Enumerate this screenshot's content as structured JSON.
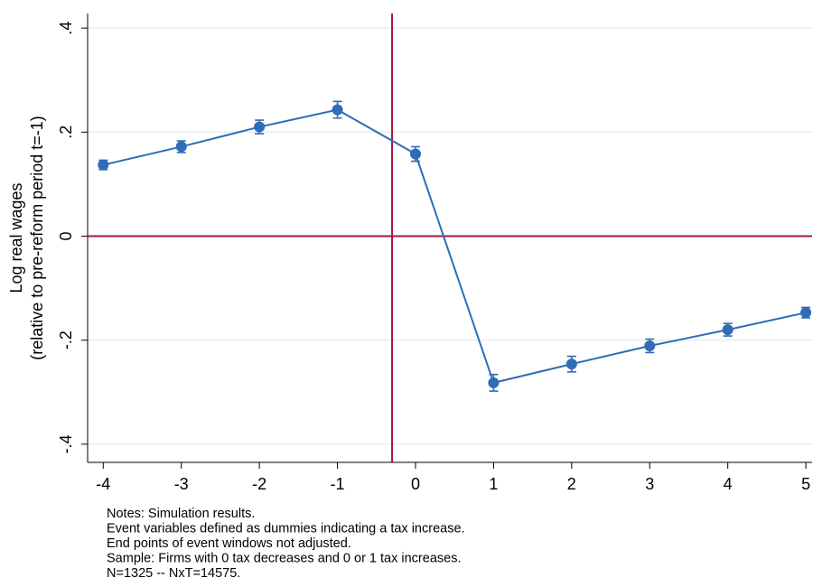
{
  "chart_data": {
    "type": "line",
    "ylabel": [
      "Log real wages",
      "(relative to pre-reform period t=-1)"
    ],
    "x": [
      -4,
      -3,
      -2,
      -1,
      0,
      1,
      2,
      3,
      4,
      5
    ],
    "series": [
      {
        "color": "#2f6cb8",
        "values": [
          0.137,
          0.172,
          0.21,
          0.243,
          0.158,
          -0.282,
          -0.246,
          -0.211,
          -0.18,
          -0.147
        ],
        "errors": [
          0.009,
          0.011,
          0.013,
          0.016,
          0.014,
          0.016,
          0.015,
          0.013,
          0.012,
          0.01
        ]
      }
    ],
    "xlim": [
      -4.2,
      5.08
    ],
    "xticks": [
      -4,
      -3,
      -2,
      -1,
      0,
      1,
      2,
      3,
      4,
      5
    ],
    "ylim": [
      -0.435,
      0.428
    ],
    "yticks": [
      {
        "value": -0.4,
        "label": "-.4"
      },
      {
        "value": -0.2,
        "label": "-.2"
      },
      0,
      {
        "value": 0.2,
        "label": ".2"
      },
      {
        "value": 0.4,
        "label": ".4"
      }
    ],
    "grid": true,
    "grid_color": "#e3eef0",
    "xline": -0.3,
    "yline": 0,
    "refline_color": "#a3163f",
    "notes": [
      "Notes: Simulation results.",
      "Event variables defined as dummies indicating a tax increase.",
      "End points of event windows not adjusted.",
      "Sample: Firms with 0 tax decreases and 0 or 1 tax increases.",
      "N=1325 -- NxT=14575."
    ]
  }
}
